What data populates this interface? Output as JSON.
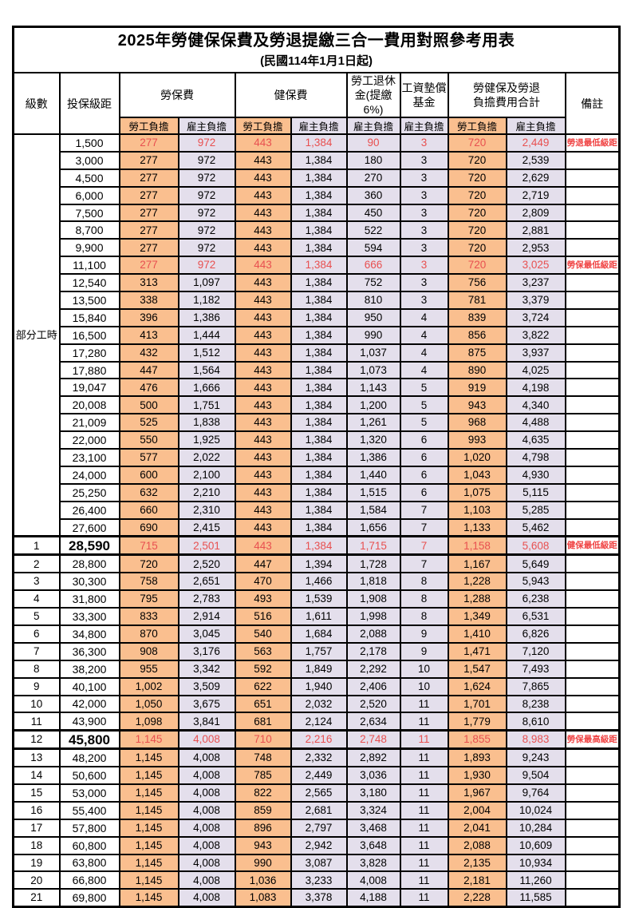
{
  "title": "2025年勞健保保費及勞退提繳三合一費用對照參考用表",
  "subtitle": "(民國114年1月1日起)",
  "colors": {
    "self_burden_bg": "#FABF8F",
    "employer_burden_bg": "#E4DFEC",
    "highlight_text": "#E85050",
    "note_text": "#F04343",
    "border": "#000000"
  },
  "header": {
    "level": "級數",
    "salary_bracket": "投保級距",
    "labor_insurance": "勞保費",
    "health_insurance": "健保費",
    "pension": "勞工退休\n金(提繳6%)",
    "wage_fund": "工資墊償\n基金",
    "total": "勞健保及勞退\n負擔費用合計",
    "remark": "備註",
    "self_burden": "勞工負擔",
    "employer_burden": "雇主負擔"
  },
  "table": {
    "part_time_label": "部分工時",
    "part_time_rowspan": 23,
    "rows": [
      {
        "salary": "1,500",
        "labor_self": "277",
        "labor_employer": "972",
        "health_self": "443",
        "health_employer": "1,384",
        "pension_employer": "90",
        "wage_fund_employer": "3",
        "total_self": "720",
        "total_employer": "2,449",
        "note": "勞退最低級距",
        "highlight": true,
        "emphasis": false
      },
      {
        "salary": "3,000",
        "labor_self": "277",
        "labor_employer": "972",
        "health_self": "443",
        "health_employer": "1,384",
        "pension_employer": "180",
        "wage_fund_employer": "3",
        "total_self": "720",
        "total_employer": "2,539",
        "note": "",
        "highlight": false,
        "emphasis": false
      },
      {
        "salary": "4,500",
        "labor_self": "277",
        "labor_employer": "972",
        "health_self": "443",
        "health_employer": "1,384",
        "pension_employer": "270",
        "wage_fund_employer": "3",
        "total_self": "720",
        "total_employer": "2,629",
        "note": "",
        "highlight": false,
        "emphasis": false
      },
      {
        "salary": "6,000",
        "labor_self": "277",
        "labor_employer": "972",
        "health_self": "443",
        "health_employer": "1,384",
        "pension_employer": "360",
        "wage_fund_employer": "3",
        "total_self": "720",
        "total_employer": "2,719",
        "note": "",
        "highlight": false,
        "emphasis": false
      },
      {
        "salary": "7,500",
        "labor_self": "277",
        "labor_employer": "972",
        "health_self": "443",
        "health_employer": "1,384",
        "pension_employer": "450",
        "wage_fund_employer": "3",
        "total_self": "720",
        "total_employer": "2,809",
        "note": "",
        "highlight": false,
        "emphasis": false
      },
      {
        "salary": "8,700",
        "labor_self": "277",
        "labor_employer": "972",
        "health_self": "443",
        "health_employer": "1,384",
        "pension_employer": "522",
        "wage_fund_employer": "3",
        "total_self": "720",
        "total_employer": "2,881",
        "note": "",
        "highlight": false,
        "emphasis": false
      },
      {
        "salary": "9,900",
        "labor_self": "277",
        "labor_employer": "972",
        "health_self": "443",
        "health_employer": "1,384",
        "pension_employer": "594",
        "wage_fund_employer": "3",
        "total_self": "720",
        "total_employer": "2,953",
        "note": "",
        "highlight": false,
        "emphasis": false
      },
      {
        "salary": "11,100",
        "labor_self": "277",
        "labor_employer": "972",
        "health_self": "443",
        "health_employer": "1,384",
        "pension_employer": "666",
        "wage_fund_employer": "3",
        "total_self": "720",
        "total_employer": "3,025",
        "note": "勞保最低級距",
        "highlight": true,
        "emphasis": false
      },
      {
        "salary": "12,540",
        "labor_self": "313",
        "labor_employer": "1,097",
        "health_self": "443",
        "health_employer": "1,384",
        "pension_employer": "752",
        "wage_fund_employer": "3",
        "total_self": "756",
        "total_employer": "3,237",
        "note": "",
        "highlight": false,
        "emphasis": false
      },
      {
        "salary": "13,500",
        "labor_self": "338",
        "labor_employer": "1,182",
        "health_self": "443",
        "health_employer": "1,384",
        "pension_employer": "810",
        "wage_fund_employer": "3",
        "total_self": "781",
        "total_employer": "3,379",
        "note": "",
        "highlight": false,
        "emphasis": false
      },
      {
        "salary": "15,840",
        "labor_self": "396",
        "labor_employer": "1,386",
        "health_self": "443",
        "health_employer": "1,384",
        "pension_employer": "950",
        "wage_fund_employer": "4",
        "total_self": "839",
        "total_employer": "3,724",
        "note": "",
        "highlight": false,
        "emphasis": false
      },
      {
        "salary": "16,500",
        "labor_self": "413",
        "labor_employer": "1,444",
        "health_self": "443",
        "health_employer": "1,384",
        "pension_employer": "990",
        "wage_fund_employer": "4",
        "total_self": "856",
        "total_employer": "3,822",
        "note": "",
        "highlight": false,
        "emphasis": false
      },
      {
        "salary": "17,280",
        "labor_self": "432",
        "labor_employer": "1,512",
        "health_self": "443",
        "health_employer": "1,384",
        "pension_employer": "1,037",
        "wage_fund_employer": "4",
        "total_self": "875",
        "total_employer": "3,937",
        "note": "",
        "highlight": false,
        "emphasis": false
      },
      {
        "salary": "17,880",
        "labor_self": "447",
        "labor_employer": "1,564",
        "health_self": "443",
        "health_employer": "1,384",
        "pension_employer": "1,073",
        "wage_fund_employer": "4",
        "total_self": "890",
        "total_employer": "4,025",
        "note": "",
        "highlight": false,
        "emphasis": false
      },
      {
        "salary": "19,047",
        "labor_self": "476",
        "labor_employer": "1,666",
        "health_self": "443",
        "health_employer": "1,384",
        "pension_employer": "1,143",
        "wage_fund_employer": "5",
        "total_self": "919",
        "total_employer": "4,198",
        "note": "",
        "highlight": false,
        "emphasis": false
      },
      {
        "salary": "20,008",
        "labor_self": "500",
        "labor_employer": "1,751",
        "health_self": "443",
        "health_employer": "1,384",
        "pension_employer": "1,200",
        "wage_fund_employer": "5",
        "total_self": "943",
        "total_employer": "4,340",
        "note": "",
        "highlight": false,
        "emphasis": false
      },
      {
        "salary": "21,009",
        "labor_self": "525",
        "labor_employer": "1,838",
        "health_self": "443",
        "health_employer": "1,384",
        "pension_employer": "1,261",
        "wage_fund_employer": "5",
        "total_self": "968",
        "total_employer": "4,488",
        "note": "",
        "highlight": false,
        "emphasis": false
      },
      {
        "salary": "22,000",
        "labor_self": "550",
        "labor_employer": "1,925",
        "health_self": "443",
        "health_employer": "1,384",
        "pension_employer": "1,320",
        "wage_fund_employer": "6",
        "total_self": "993",
        "total_employer": "4,635",
        "note": "",
        "highlight": false,
        "emphasis": false
      },
      {
        "salary": "23,100",
        "labor_self": "577",
        "labor_employer": "2,022",
        "health_self": "443",
        "health_employer": "1,384",
        "pension_employer": "1,386",
        "wage_fund_employer": "6",
        "total_self": "1,020",
        "total_employer": "4,798",
        "note": "",
        "highlight": false,
        "emphasis": false
      },
      {
        "salary": "24,000",
        "labor_self": "600",
        "labor_employer": "2,100",
        "health_self": "443",
        "health_employer": "1,384",
        "pension_employer": "1,440",
        "wage_fund_employer": "6",
        "total_self": "1,043",
        "total_employer": "4,930",
        "note": "",
        "highlight": false,
        "emphasis": false
      },
      {
        "salary": "25,250",
        "labor_self": "632",
        "labor_employer": "2,210",
        "health_self": "443",
        "health_employer": "1,384",
        "pension_employer": "1,515",
        "wage_fund_employer": "6",
        "total_self": "1,075",
        "total_employer": "5,115",
        "note": "",
        "highlight": false,
        "emphasis": false
      },
      {
        "salary": "26,400",
        "labor_self": "660",
        "labor_employer": "2,310",
        "health_self": "443",
        "health_employer": "1,384",
        "pension_employer": "1,584",
        "wage_fund_employer": "7",
        "total_self": "1,103",
        "total_employer": "5,285",
        "note": "",
        "highlight": false,
        "emphasis": false
      },
      {
        "salary": "27,600",
        "labor_self": "690",
        "labor_employer": "2,415",
        "health_self": "443",
        "health_employer": "1,384",
        "pension_employer": "1,656",
        "wage_fund_employer": "7",
        "total_self": "1,133",
        "total_employer": "5,462",
        "note": "",
        "highlight": false,
        "emphasis": false
      },
      {
        "level": "1",
        "salary": "28,590",
        "labor_self": "715",
        "labor_employer": "2,501",
        "health_self": "443",
        "health_employer": "1,384",
        "pension_employer": "1,715",
        "wage_fund_employer": "7",
        "total_self": "1,158",
        "total_employer": "5,608",
        "note": "健保最低級距",
        "highlight": true,
        "emphasis": true
      },
      {
        "level": "2",
        "salary": "28,800",
        "labor_self": "720",
        "labor_employer": "2,520",
        "health_self": "447",
        "health_employer": "1,394",
        "pension_employer": "1,728",
        "wage_fund_employer": "7",
        "total_self": "1,167",
        "total_employer": "5,649",
        "note": "",
        "highlight": false,
        "emphasis": false
      },
      {
        "level": "3",
        "salary": "30,300",
        "labor_self": "758",
        "labor_employer": "2,651",
        "health_self": "470",
        "health_employer": "1,466",
        "pension_employer": "1,818",
        "wage_fund_employer": "8",
        "total_self": "1,228",
        "total_employer": "5,943",
        "note": "",
        "highlight": false,
        "emphasis": false
      },
      {
        "level": "4",
        "salary": "31,800",
        "labor_self": "795",
        "labor_employer": "2,783",
        "health_self": "493",
        "health_employer": "1,539",
        "pension_employer": "1,908",
        "wage_fund_employer": "8",
        "total_self": "1,288",
        "total_employer": "6,238",
        "note": "",
        "highlight": false,
        "emphasis": false
      },
      {
        "level": "5",
        "salary": "33,300",
        "labor_self": "833",
        "labor_employer": "2,914",
        "health_self": "516",
        "health_employer": "1,611",
        "pension_employer": "1,998",
        "wage_fund_employer": "8",
        "total_self": "1,349",
        "total_employer": "6,531",
        "note": "",
        "highlight": false,
        "emphasis": false
      },
      {
        "level": "6",
        "salary": "34,800",
        "labor_self": "870",
        "labor_employer": "3,045",
        "health_self": "540",
        "health_employer": "1,684",
        "pension_employer": "2,088",
        "wage_fund_employer": "9",
        "total_self": "1,410",
        "total_employer": "6,826",
        "note": "",
        "highlight": false,
        "emphasis": false
      },
      {
        "level": "7",
        "salary": "36,300",
        "labor_self": "908",
        "labor_employer": "3,176",
        "health_self": "563",
        "health_employer": "1,757",
        "pension_employer": "2,178",
        "wage_fund_employer": "9",
        "total_self": "1,471",
        "total_employer": "7,120",
        "note": "",
        "highlight": false,
        "emphasis": false
      },
      {
        "level": "8",
        "salary": "38,200",
        "labor_self": "955",
        "labor_employer": "3,342",
        "health_self": "592",
        "health_employer": "1,849",
        "pension_employer": "2,292",
        "wage_fund_employer": "10",
        "total_self": "1,547",
        "total_employer": "7,493",
        "note": "",
        "highlight": false,
        "emphasis": false
      },
      {
        "level": "9",
        "salary": "40,100",
        "labor_self": "1,002",
        "labor_employer": "3,509",
        "health_self": "622",
        "health_employer": "1,940",
        "pension_employer": "2,406",
        "wage_fund_employer": "10",
        "total_self": "1,624",
        "total_employer": "7,865",
        "note": "",
        "highlight": false,
        "emphasis": false
      },
      {
        "level": "10",
        "salary": "42,000",
        "labor_self": "1,050",
        "labor_employer": "3,675",
        "health_self": "651",
        "health_employer": "2,032",
        "pension_employer": "2,520",
        "wage_fund_employer": "11",
        "total_self": "1,701",
        "total_employer": "8,238",
        "note": "",
        "highlight": false,
        "emphasis": false
      },
      {
        "level": "11",
        "salary": "43,900",
        "labor_self": "1,098",
        "labor_employer": "3,841",
        "health_self": "681",
        "health_employer": "2,124",
        "pension_employer": "2,634",
        "wage_fund_employer": "11",
        "total_self": "1,779",
        "total_employer": "8,610",
        "note": "",
        "highlight": false,
        "emphasis": false
      },
      {
        "level": "12",
        "salary": "45,800",
        "labor_self": "1,145",
        "labor_employer": "4,008",
        "health_self": "710",
        "health_employer": "2,216",
        "pension_employer": "2,748",
        "wage_fund_employer": "11",
        "total_self": "1,855",
        "total_employer": "8,983",
        "note": "勞保最高級距",
        "highlight": true,
        "emphasis": true
      },
      {
        "level": "13",
        "salary": "48,200",
        "labor_self": "1,145",
        "labor_employer": "4,008",
        "health_self": "748",
        "health_employer": "2,332",
        "pension_employer": "2,892",
        "wage_fund_employer": "11",
        "total_self": "1,893",
        "total_employer": "9,243",
        "note": "",
        "highlight": false,
        "emphasis": false
      },
      {
        "level": "14",
        "salary": "50,600",
        "labor_self": "1,145",
        "labor_employer": "4,008",
        "health_self": "785",
        "health_employer": "2,449",
        "pension_employer": "3,036",
        "wage_fund_employer": "11",
        "total_self": "1,930",
        "total_employer": "9,504",
        "note": "",
        "highlight": false,
        "emphasis": false
      },
      {
        "level": "15",
        "salary": "53,000",
        "labor_self": "1,145",
        "labor_employer": "4,008",
        "health_self": "822",
        "health_employer": "2,565",
        "pension_employer": "3,180",
        "wage_fund_employer": "11",
        "total_self": "1,967",
        "total_employer": "9,764",
        "note": "",
        "highlight": false,
        "emphasis": false
      },
      {
        "level": "16",
        "salary": "55,400",
        "labor_self": "1,145",
        "labor_employer": "4,008",
        "health_self": "859",
        "health_employer": "2,681",
        "pension_employer": "3,324",
        "wage_fund_employer": "11",
        "total_self": "2,004",
        "total_employer": "10,024",
        "note": "",
        "highlight": false,
        "emphasis": false
      },
      {
        "level": "17",
        "salary": "57,800",
        "labor_self": "1,145",
        "labor_employer": "4,008",
        "health_self": "896",
        "health_employer": "2,797",
        "pension_employer": "3,468",
        "wage_fund_employer": "11",
        "total_self": "2,041",
        "total_employer": "10,284",
        "note": "",
        "highlight": false,
        "emphasis": false
      },
      {
        "level": "18",
        "salary": "60,800",
        "labor_self": "1,145",
        "labor_employer": "4,008",
        "health_self": "943",
        "health_employer": "2,942",
        "pension_employer": "3,648",
        "wage_fund_employer": "11",
        "total_self": "2,088",
        "total_employer": "10,609",
        "note": "",
        "highlight": false,
        "emphasis": false
      },
      {
        "level": "19",
        "salary": "63,800",
        "labor_self": "1,145",
        "labor_employer": "4,008",
        "health_self": "990",
        "health_employer": "3,087",
        "pension_employer": "3,828",
        "wage_fund_employer": "11",
        "total_self": "2,135",
        "total_employer": "10,934",
        "note": "",
        "highlight": false,
        "emphasis": false
      },
      {
        "level": "20",
        "salary": "66,800",
        "labor_self": "1,145",
        "labor_employer": "4,008",
        "health_self": "1,036",
        "health_employer": "3,233",
        "pension_employer": "4,008",
        "wage_fund_employer": "11",
        "total_self": "2,181",
        "total_employer": "11,260",
        "note": "",
        "highlight": false,
        "emphasis": false
      },
      {
        "level": "21",
        "salary": "69,800",
        "labor_self": "1,145",
        "labor_employer": "4,008",
        "health_self": "1,083",
        "health_employer": "3,378",
        "pension_employer": "4,188",
        "wage_fund_employer": "11",
        "total_self": "2,228",
        "total_employer": "11,585",
        "note": "",
        "highlight": false,
        "emphasis": false
      }
    ]
  }
}
